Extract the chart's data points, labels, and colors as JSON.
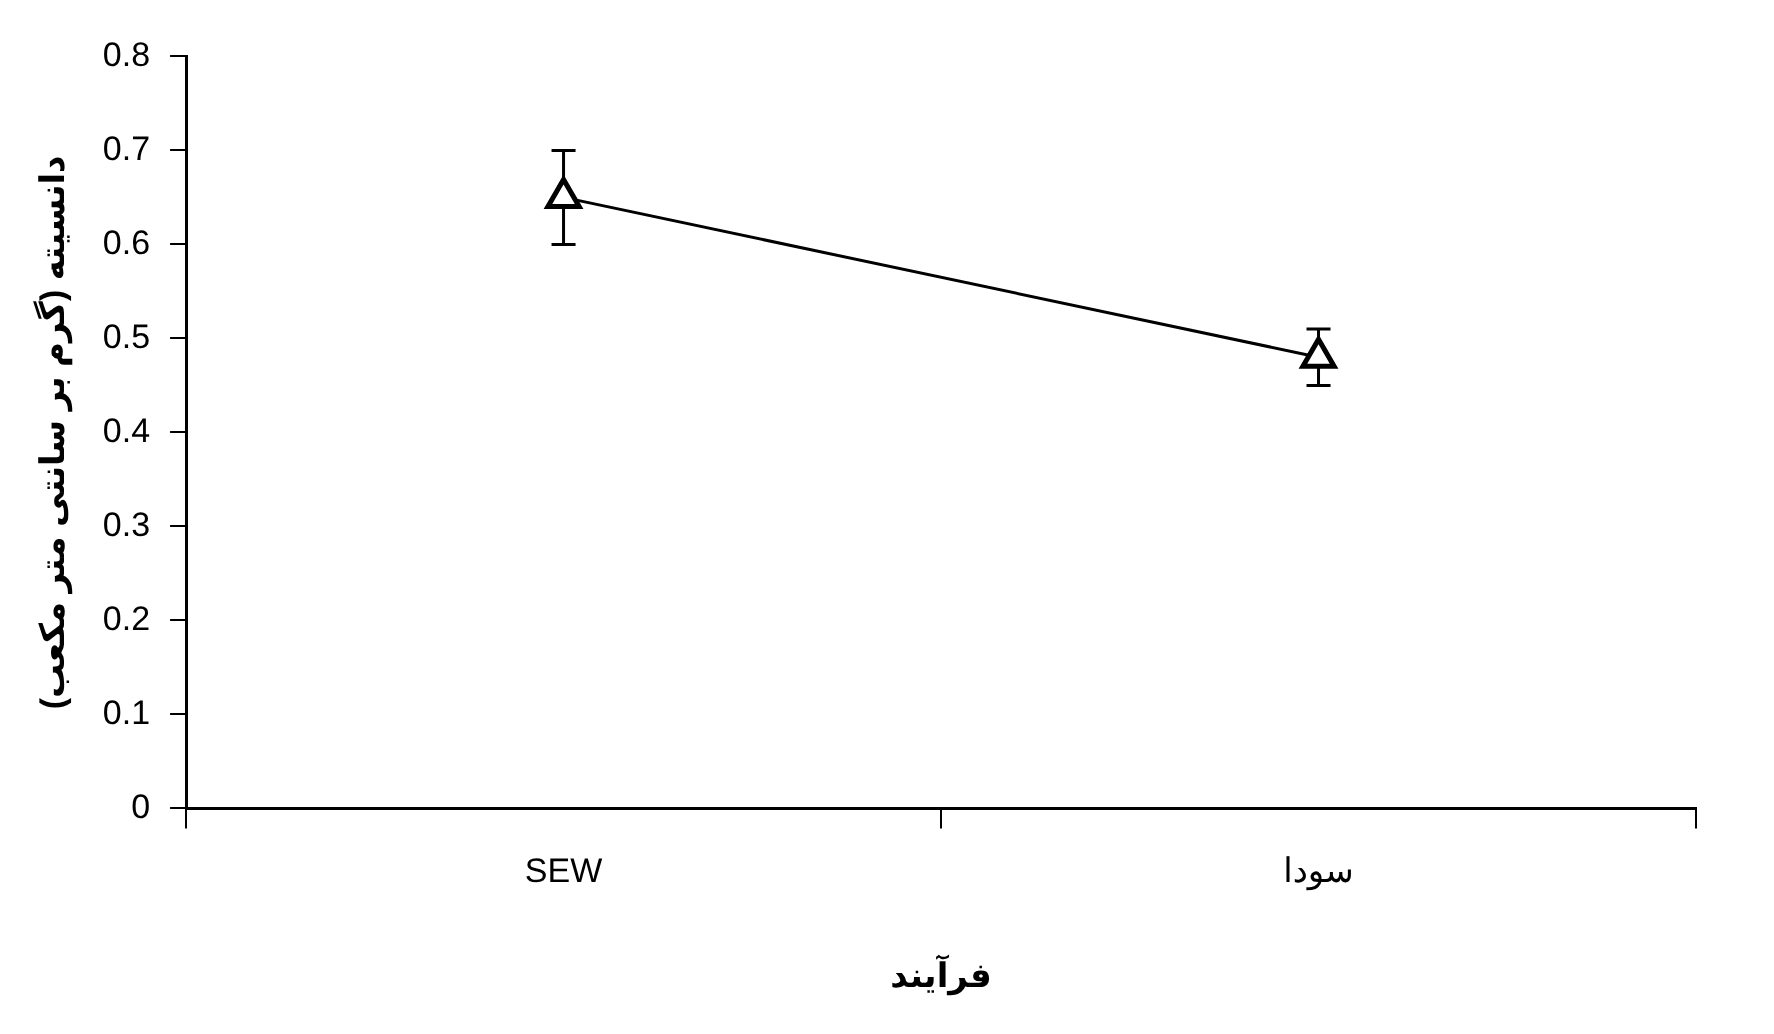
{
  "chart_data": {
    "type": "line",
    "xlabel": "فرآیند",
    "ylabel": "دانسیته (گرم بر سانتی متر مکعب)",
    "categories": [
      "SEW",
      "سودا"
    ],
    "series": [
      {
        "color": "#000000",
        "values": [
          0.65,
          0.48
        ],
        "errors": [
          0.05,
          0.03
        ]
      }
    ],
    "ylim": [
      0,
      0.8
    ],
    "yticks": [
      0,
      0.1,
      0.2,
      0.3,
      0.4,
      0.5,
      0.6,
      0.7,
      0.8
    ],
    "marker": "triangle",
    "line_style": "solid",
    "grid": false,
    "legend": false
  }
}
